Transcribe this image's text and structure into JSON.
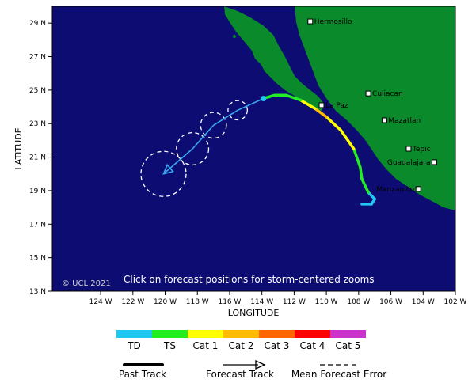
{
  "map": {
    "x_axis_title": "LONGITUDE",
    "y_axis_title": "LATITUDE",
    "lon_range": [
      -127,
      -102
    ],
    "lat_range": [
      13,
      30
    ],
    "lon_ticks": [
      "124 W",
      "122 W",
      "120 W",
      "118 W",
      "116 W",
      "114 W",
      "112 W",
      "110 W",
      "108 W",
      "106 W",
      "104 W",
      "102 W"
    ],
    "lat_ticks": [
      "29 N",
      "27 N",
      "25 N",
      "23 N",
      "21 N",
      "19 N",
      "17 N",
      "15 N",
      "13 N"
    ],
    "copyright": "© UCL 2021",
    "click_note": "Click on forecast positions for storm-centered zooms",
    "ocean_color": "#0c0c72",
    "land_color": "#0a8a2a",
    "cities": [
      {
        "name": "Hermosillo",
        "lon": -111.0,
        "lat": 29.1
      },
      {
        "name": "Culiacan",
        "lon": -107.4,
        "lat": 24.8
      },
      {
        "name": "La Paz",
        "lon": -110.3,
        "lat": 24.1
      },
      {
        "name": "Mazatlan",
        "lon": -106.4,
        "lat": 23.2
      },
      {
        "name": "Tepic",
        "lon": -104.9,
        "lat": 21.5
      },
      {
        "name": "Guadalajara",
        "lon": -103.3,
        "lat": 20.7
      },
      {
        "name": "Manzanillo",
        "lon": -104.3,
        "lat": 19.1
      }
    ],
    "past_track": [
      {
        "lon": -107.8,
        "lat": 18.2,
        "category": "TD"
      },
      {
        "lon": -107.2,
        "lat": 18.2,
        "category": "TD"
      },
      {
        "lon": -107.0,
        "lat": 18.5,
        "category": "TD"
      },
      {
        "lon": -107.4,
        "lat": 18.9,
        "category": "TS"
      },
      {
        "lon": -107.8,
        "lat": 19.7,
        "category": "TS"
      },
      {
        "lon": -107.9,
        "lat": 20.4,
        "category": "TS"
      },
      {
        "lon": -108.3,
        "lat": 21.5,
        "category": "Cat 1"
      },
      {
        "lon": -109.1,
        "lat": 22.6,
        "category": "Cat 1"
      },
      {
        "lon": -110.0,
        "lat": 23.4,
        "category": "Cat 2"
      },
      {
        "lon": -110.7,
        "lat": 23.9,
        "category": "Cat 1"
      },
      {
        "lon": -111.6,
        "lat": 24.4,
        "category": "TS"
      },
      {
        "lon": -112.5,
        "lat": 24.7,
        "category": "TS"
      },
      {
        "lon": -113.2,
        "lat": 24.7,
        "category": "TS"
      },
      {
        "lon": -113.9,
        "lat": 24.5,
        "category": "TD"
      }
    ],
    "forecast_track": [
      {
        "lon": -113.9,
        "lat": 24.5
      },
      {
        "lon": -115.5,
        "lat": 23.8
      },
      {
        "lon": -117.0,
        "lat": 22.9
      },
      {
        "lon": -118.3,
        "lat": 21.5
      },
      {
        "lon": -120.1,
        "lat": 20.0
      }
    ],
    "forecast_error_radius_deg": [
      0.4,
      0.6,
      0.8,
      1.0,
      1.4
    ]
  },
  "legend": {
    "categories": [
      {
        "label": "TD",
        "color": "#1ec8f0"
      },
      {
        "label": "TS",
        "color": "#22ee22"
      },
      {
        "label": "Cat 1",
        "color": "#ffff00"
      },
      {
        "label": "Cat 2",
        "color": "#ffbb00"
      },
      {
        "label": "Cat 3",
        "color": "#ff6600"
      },
      {
        "label": "Cat 4",
        "color": "#ff0000"
      },
      {
        "label": "Cat 5",
        "color": "#cc33cc"
      }
    ],
    "past_track_label": "Past Track",
    "forecast_track_label": "Forecast Track",
    "forecast_error_label": "Mean Forecast Error"
  }
}
